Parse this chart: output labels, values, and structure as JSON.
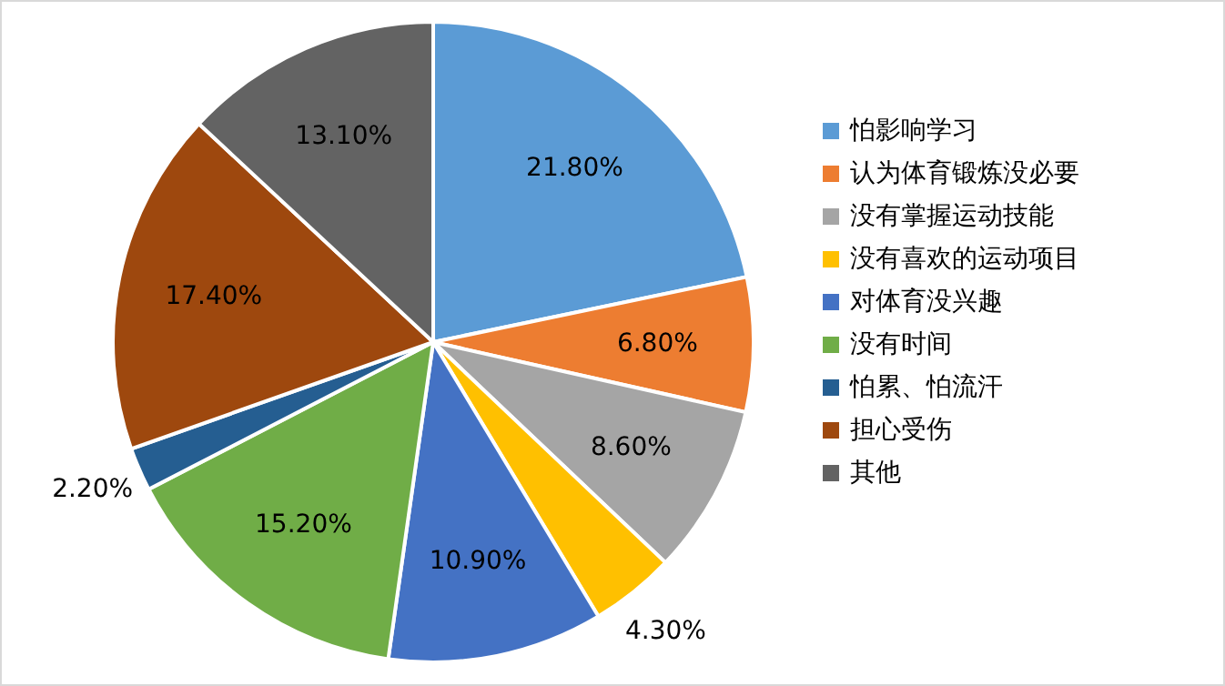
{
  "chart_data": {
    "type": "pie",
    "categories": [
      "怕影响学习",
      "认为体育锻炼没必要",
      "没有掌握运动技能",
      "没有喜欢的运动项目",
      "对体育没兴趣",
      "没有时间",
      "怕累、怕流汗",
      "担心受伤",
      "其他"
    ],
    "values": [
      21.8,
      6.8,
      8.6,
      4.3,
      10.9,
      15.2,
      2.2,
      17.4,
      13.1
    ],
    "value_labels": [
      "21.80%",
      "6.80%",
      "8.60%",
      "4.30%",
      "10.90%",
      "15.20%",
      "2.20%",
      "17.40%",
      "13.10%"
    ],
    "colors": [
      "#5b9bd5",
      "#ed7d31",
      "#a5a5a5",
      "#ffc000",
      "#4472c4",
      "#70ad47",
      "#255e91",
      "#9e480e",
      "#636363"
    ],
    "legend": "right"
  }
}
